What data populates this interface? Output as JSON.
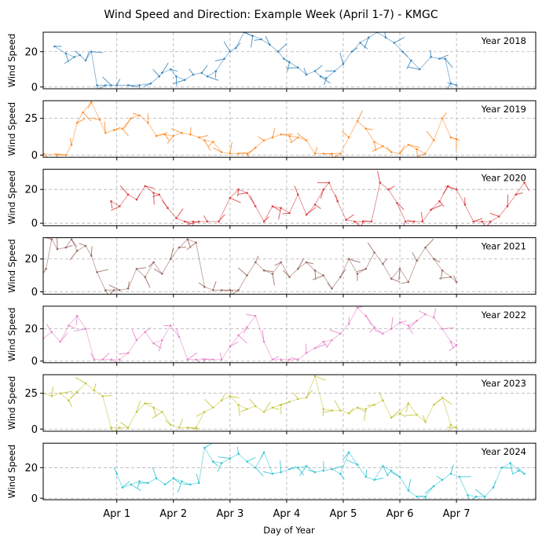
{
  "chart_data": {
    "type": "line",
    "title": "Wind Speed and Direction: Example Week (April 1-7) - KMGC",
    "xlabel": "Day of Year",
    "ylabel": "Wind Speed",
    "x_ticks": [
      "Apr 1",
      "Apr 2",
      "Apr 3",
      "Apr 4",
      "Apr 5",
      "Apr 6",
      "Apr 7"
    ],
    "x_tick_values": [
      1,
      2,
      3,
      4,
      5,
      6,
      7
    ],
    "xlim": [
      -0.3,
      8.4
    ],
    "grid": true,
    "legend_placement": "top-right",
    "panels": [
      {
        "label": "Year 2018",
        "color": "#1f77b4",
        "ylim": [
          -1,
          31
        ],
        "yticks": [
          0,
          20
        ],
        "x": [
          -0.1,
          0.1,
          0.25,
          0.35,
          0.45,
          0.55,
          0.65,
          0.8,
          0.9,
          1.0,
          1.2,
          1.4,
          1.6,
          1.75,
          1.8,
          1.95,
          2.05,
          2.2,
          2.35,
          2.5,
          2.6,
          2.75,
          2.9,
          3.0,
          3.1,
          3.25,
          3.4,
          3.55,
          3.7,
          3.85,
          3.95,
          4.05,
          4.2,
          4.35,
          4.5,
          4.6,
          4.7,
          4.85,
          5.0,
          5.15,
          5.3,
          5.45,
          5.6,
          5.75,
          5.9,
          6.05,
          6.2,
          6.35,
          6.55,
          6.7,
          6.8,
          6.9,
          7.0
        ],
        "y": [
          23,
          19,
          17,
          18,
          15,
          20,
          1,
          1,
          1,
          1,
          1,
          1,
          2,
          6,
          8,
          10,
          6,
          4,
          7,
          8,
          6,
          9,
          16,
          20,
          22,
          31,
          29,
          27,
          24,
          20,
          16,
          14,
          11,
          7,
          9,
          6,
          5,
          9,
          13,
          20,
          25,
          28,
          31,
          28,
          25,
          20,
          15,
          10,
          17,
          16,
          16,
          2,
          1
        ]
      },
      {
        "label": "Year 2019",
        "color": "#ff7f0e",
        "ylim": [
          -1.5,
          37
        ],
        "yticks": [
          0,
          25
        ],
        "x": [
          -0.3,
          -0.05,
          0.1,
          0.2,
          0.3,
          0.4,
          0.55,
          0.7,
          0.8,
          0.95,
          1.1,
          1.25,
          1.4,
          1.55,
          1.7,
          1.85,
          2.0,
          2.15,
          2.3,
          2.45,
          2.55,
          2.7,
          2.85,
          3.0,
          3.15,
          3.3,
          3.45,
          3.6,
          3.75,
          3.9,
          4.05,
          4.2,
          4.35,
          4.5,
          4.65,
          4.8,
          4.95,
          5.1,
          5.25,
          5.4,
          5.55,
          5.7,
          5.85,
          6.0,
          6.15,
          6.3,
          6.45,
          6.6,
          6.75,
          6.9,
          7.0
        ],
        "y": [
          1,
          0,
          0,
          7,
          22,
          29,
          36,
          24,
          15,
          17,
          18,
          25,
          27,
          22,
          13,
          14,
          13,
          15,
          14,
          12,
          10,
          9,
          2,
          1,
          1,
          1,
          5,
          10,
          12,
          14,
          13,
          12,
          10,
          1,
          1,
          1,
          1,
          12,
          23,
          18,
          9,
          6,
          2,
          1,
          7,
          4,
          1,
          10,
          25,
          12,
          11
        ]
      },
      {
        "label": "Year 2020",
        "color": "#d62728",
        "ylim": [
          -1.5,
          32
        ],
        "yticks": [
          0,
          20
        ],
        "x": [
          0.9,
          1.05,
          1.2,
          1.35,
          1.5,
          1.65,
          1.75,
          1.9,
          2.05,
          2.2,
          2.35,
          2.45,
          2.6,
          2.8,
          3.0,
          3.15,
          3.3,
          3.45,
          3.6,
          3.75,
          3.9,
          4.05,
          4.2,
          4.35,
          4.5,
          4.65,
          4.75,
          4.9,
          5.05,
          5.2,
          5.35,
          5.5,
          5.65,
          5.8,
          5.95,
          6.1,
          6.25,
          6.4,
          6.55,
          6.7,
          6.85,
          7.0,
          7.15,
          7.3,
          7.45,
          7.6,
          7.75,
          7.9,
          8.05,
          8.2
        ],
        "y": [
          13,
          10,
          17,
          14,
          22,
          18,
          17,
          9,
          3,
          1,
          1,
          1,
          1,
          1,
          15,
          20,
          18,
          10,
          1,
          10,
          9,
          6,
          17,
          5,
          11,
          20,
          24,
          13,
          2,
          1,
          1,
          1,
          24,
          20,
          12,
          1,
          1,
          1,
          8,
          13,
          22,
          20,
          11,
          1,
          1,
          1,
          4,
          10,
          17,
          24
        ]
      },
      {
        "label": "Year 2021",
        "color": "#8c564b",
        "ylim": [
          -1.5,
          33
        ],
        "yticks": [
          0,
          20
        ],
        "x": [
          -0.25,
          -0.15,
          -0.05,
          0.1,
          0.2,
          0.3,
          0.45,
          0.55,
          0.65,
          0.8,
          0.95,
          1.05,
          1.2,
          1.35,
          1.5,
          1.65,
          1.8,
          1.95,
          2.1,
          2.25,
          2.4,
          2.55,
          2.7,
          2.85,
          3.0,
          3.15,
          3.3,
          3.45,
          3.6,
          3.75,
          3.9,
          4.05,
          4.2,
          4.35,
          4.5,
          4.65,
          4.8,
          4.95,
          5.1,
          5.25,
          5.4,
          5.55,
          5.7,
          5.85,
          6.0,
          6.15,
          6.3,
          6.45,
          6.6,
          6.75,
          6.9,
          7.0
        ],
        "y": [
          14,
          32,
          26,
          27,
          32,
          25,
          28,
          22,
          12,
          1,
          1,
          1,
          2,
          14,
          9,
          18,
          11,
          20,
          27,
          32,
          30,
          3,
          1,
          1,
          1,
          1,
          10,
          18,
          13,
          11,
          18,
          9,
          14,
          18,
          13,
          10,
          2,
          9,
          20,
          11,
          14,
          24,
          17,
          8,
          14,
          6,
          19,
          27,
          20,
          13,
          9,
          6
        ]
      },
      {
        "label": "Year 2022",
        "color": "#e377c2",
        "ylim": [
          -1,
          34
        ],
        "yticks": [
          0,
          20
        ],
        "x": [
          -0.3,
          -0.15,
          0.0,
          0.15,
          0.3,
          0.45,
          0.6,
          0.75,
          0.9,
          1.05,
          1.2,
          1.35,
          1.5,
          1.65,
          1.8,
          1.95,
          2.1,
          2.25,
          2.4,
          2.55,
          2.7,
          2.85,
          3.0,
          3.15,
          3.3,
          3.45,
          3.6,
          3.75,
          3.9,
          4.05,
          4.2,
          4.35,
          4.5,
          4.65,
          4.8,
          4.95,
          5.1,
          5.25,
          5.4,
          5.55,
          5.7,
          5.85,
          6.0,
          6.15,
          6.3,
          6.45,
          6.6,
          6.75,
          6.9,
          7.0
        ],
        "y": [
          14,
          18,
          12,
          22,
          28,
          20,
          1,
          1,
          1,
          1,
          5,
          13,
          18,
          11,
          13,
          22,
          15,
          1,
          1,
          1,
          1,
          1,
          9,
          16,
          21,
          28,
          12,
          1,
          1,
          1,
          1,
          5,
          8,
          12,
          13,
          17,
          23,
          33,
          28,
          21,
          17,
          20,
          24,
          22,
          25,
          29,
          27,
          20,
          12,
          10
        ]
      },
      {
        "label": "Year 2023",
        "color": "#bcbd22",
        "ylim": [
          -1.5,
          38
        ],
        "yticks": [
          0,
          25
        ],
        "x": [
          -0.3,
          -0.15,
          0.0,
          0.15,
          0.3,
          0.45,
          0.6,
          0.75,
          0.9,
          1.05,
          1.2,
          1.35,
          1.5,
          1.65,
          1.8,
          1.95,
          2.1,
          2.25,
          2.4,
          2.55,
          2.7,
          2.85,
          3.0,
          3.15,
          3.3,
          3.45,
          3.6,
          3.75,
          3.9,
          4.05,
          4.2,
          4.35,
          4.5,
          4.65,
          4.8,
          4.95,
          5.1,
          5.25,
          5.4,
          5.55,
          5.7,
          5.85,
          6.0,
          6.15,
          6.3,
          6.45,
          6.6,
          6.75,
          6.9,
          7.0
        ],
        "y": [
          25,
          23,
          25,
          20,
          26,
          32,
          27,
          23,
          1,
          1,
          1,
          12,
          18,
          15,
          12,
          3,
          1,
          1,
          1,
          12,
          15,
          20,
          23,
          17,
          14,
          16,
          12,
          15,
          17,
          19,
          21,
          22,
          37,
          14,
          13,
          13,
          11,
          15,
          14,
          17,
          20,
          8,
          11,
          18,
          10,
          5,
          17,
          22,
          3,
          1
        ]
      },
      {
        "label": "Year 2024",
        "color": "#17becf",
        "ylim": [
          -1,
          36
        ],
        "yticks": [
          0,
          20
        ],
        "x": [
          1.0,
          1.1,
          1.25,
          1.4,
          1.55,
          1.7,
          1.85,
          2.0,
          2.15,
          2.3,
          2.45,
          2.55,
          2.7,
          2.85,
          3.0,
          3.15,
          3.3,
          3.45,
          3.6,
          3.75,
          3.9,
          4.05,
          4.2,
          4.35,
          4.5,
          4.65,
          4.8,
          4.95,
          5.1,
          5.25,
          5.4,
          5.55,
          5.7,
          5.85,
          6.0,
          6.15,
          6.3,
          6.45,
          6.6,
          6.75,
          6.9,
          7.05,
          7.2,
          7.35,
          7.5,
          7.65,
          7.8,
          7.95,
          8.1,
          8.2
        ],
        "y": [
          16,
          7,
          9,
          11,
          10,
          13,
          9,
          13,
          11,
          9,
          10,
          33,
          24,
          23,
          26,
          29,
          24,
          20,
          30,
          16,
          17,
          19,
          20,
          21,
          17,
          18,
          19,
          16,
          30,
          22,
          14,
          12,
          21,
          18,
          14,
          5,
          1,
          1,
          8,
          12,
          16,
          14,
          2,
          1,
          1,
          7,
          20,
          23,
          18,
          16
        ]
      }
    ]
  }
}
